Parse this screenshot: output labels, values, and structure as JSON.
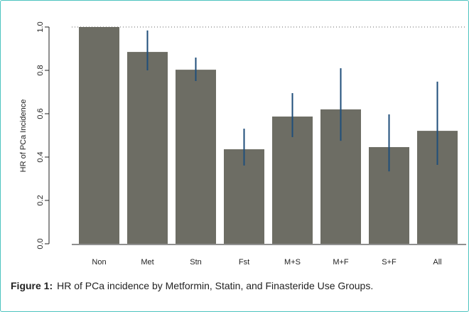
{
  "chart_data": {
    "type": "bar",
    "ylabel": "HR of PCa Incidence",
    "categories": [
      "Non",
      "Met",
      "Stn",
      "Fst",
      "M+S",
      "M+F",
      "S+F",
      "All"
    ],
    "values": [
      1.0,
      0.885,
      0.803,
      0.436,
      0.587,
      0.62,
      0.446,
      0.521
    ],
    "lower": [
      null,
      0.8,
      0.751,
      0.361,
      0.492,
      0.475,
      0.334,
      0.364
    ],
    "upper": [
      null,
      0.984,
      0.859,
      0.531,
      0.695,
      0.81,
      0.597,
      0.748
    ],
    "color": "#6d6d64",
    "error_color": "#1f4e7a",
    "reference_line": 1.0,
    "ylim": [
      0,
      1
    ],
    "yticks": [
      {
        "value": 0,
        "label": "0.0"
      },
      {
        "value": 0.2,
        "label": "0.2"
      },
      {
        "value": 0.4,
        "label": "0.4"
      },
      {
        "value": 0.6,
        "label": "0.6"
      },
      {
        "value": 0.8,
        "label": "0.8"
      },
      {
        "value": 1,
        "label": "1.0"
      }
    ]
  },
  "caption": {
    "label": "Figure 1:",
    "text": "HR of PCa incidence by Metformin, Statin, and Finasteride Use Groups."
  }
}
